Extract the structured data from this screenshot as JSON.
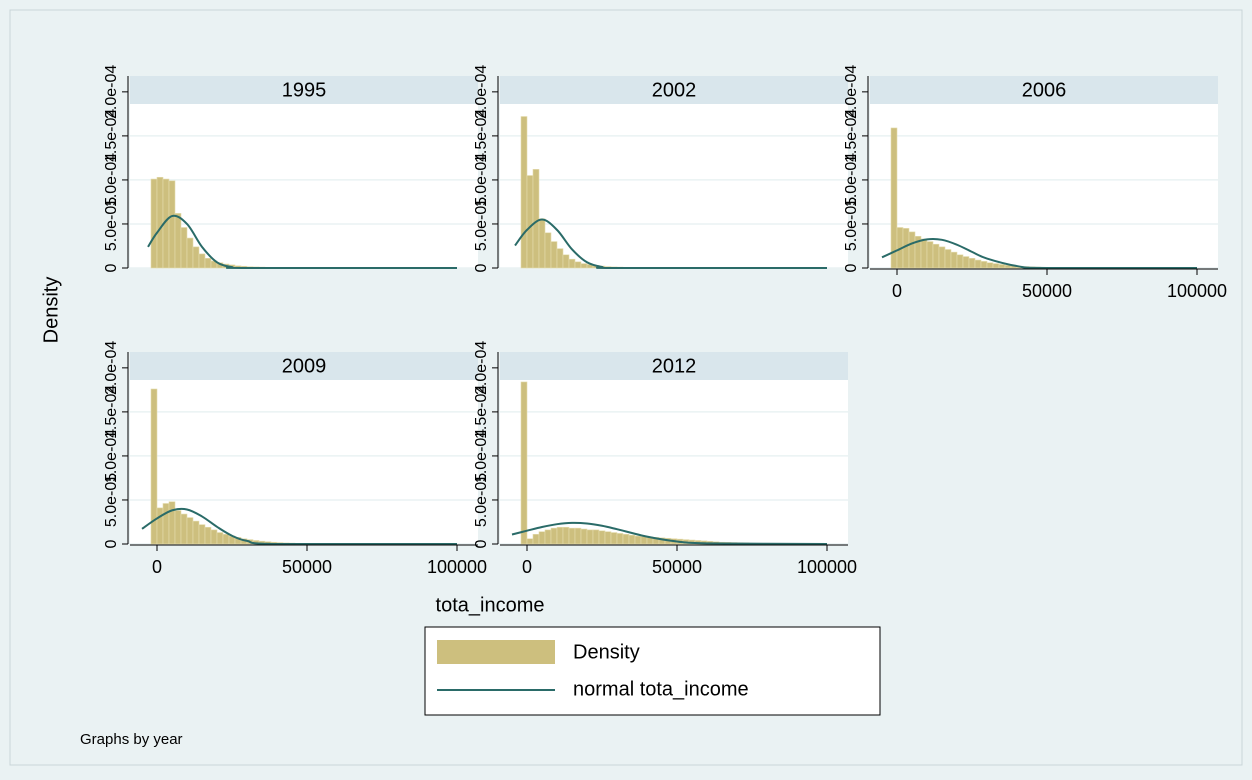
{
  "chart_data": [
    {
      "type": "histogram",
      "title": "1995",
      "x_axis": false,
      "bins": [
        -2000,
        0,
        2000,
        4000,
        6000,
        8000,
        10000,
        12000,
        14000,
        16000,
        18000,
        20000,
        22000,
        24000,
        26000,
        28000,
        30000,
        32000,
        34000,
        36000,
        38000,
        40000
      ],
      "values": [
        0.000101,
        0.000103,
        0.000101,
        9.9e-05,
        6.2e-05,
        4.6e-05,
        3.4e-05,
        2.4e-05,
        1.6e-05,
        1.1e-05,
        8e-06,
        6e-06,
        4.5e-06,
        3.5e-06,
        2.5e-06,
        2e-06,
        1.5e-06,
        1.2e-06,
        1e-06,
        8e-07,
        6e-07
      ],
      "curve": {
        "x": [
          -3000,
          0,
          5000,
          10000,
          15000,
          20000,
          25000,
          30000,
          100000
        ],
        "y": [
          2.4e-05,
          4e-05,
          5.9e-05,
          5e-05,
          2.4e-05,
          6.5e-06,
          1e-06,
          0,
          0
        ]
      },
      "xlim": [
        -9000,
        107000
      ],
      "xticks": [
        0,
        50000,
        100000
      ],
      "ylim": [
        0,
        0.000218
      ],
      "yticks": [
        0,
        {
          "value": 5e-05,
          "label": "5.0e-05"
        },
        {
          "value": 0.0001,
          "label": "1.0e-04"
        },
        {
          "value": 0.00015,
          "label": "1.5e-04"
        },
        {
          "value": 0.0002,
          "label": "2.0e-04"
        }
      ],
      "grid": true
    },
    {
      "type": "histogram",
      "title": "2002",
      "x_axis": false,
      "bins": [
        -2000,
        0,
        2000,
        4000,
        6000,
        8000,
        10000,
        12000,
        14000,
        16000,
        18000,
        20000,
        22000,
        24000,
        26000,
        28000,
        30000,
        32000,
        34000,
        36000
      ],
      "values": [
        0.000172,
        0.000105,
        0.000112,
        5.6e-05,
        4e-05,
        3e-05,
        2.2e-05,
        1.5e-05,
        1e-05,
        7e-06,
        5e-06,
        4e-06,
        3e-06,
        2.2e-06,
        1.6e-06,
        1.2e-06,
        1e-06,
        8e-07,
        6e-07
      ],
      "curve": {
        "x": [
          -4000,
          0,
          5000,
          10000,
          15000,
          20000,
          25000,
          30000,
          100000
        ],
        "y": [
          2.55e-05,
          4.33e-05,
          5.5e-05,
          4.33e-05,
          2.12e-05,
          6.5e-06,
          1.2e-06,
          0,
          0
        ]
      },
      "xlim": [
        -9000,
        107000
      ],
      "xticks": [
        0,
        50000,
        100000
      ],
      "ylim": [
        0,
        0.000218
      ],
      "yticks": [
        0,
        {
          "value": 5e-05,
          "label": "5.0e-05"
        },
        {
          "value": 0.0001,
          "label": "1.0e-04"
        },
        {
          "value": 0.00015,
          "label": "1.5e-04"
        },
        {
          "value": 0.0002,
          "label": "2.0e-04"
        }
      ],
      "grid": true
    },
    {
      "type": "histogram",
      "title": "2006",
      "x_axis": true,
      "bins": [
        -2000,
        0,
        2000,
        4000,
        6000,
        8000,
        10000,
        12000,
        14000,
        16000,
        18000,
        20000,
        22000,
        24000,
        26000,
        28000,
        30000,
        32000,
        34000,
        36000,
        38000,
        40000,
        42000,
        44000,
        46000,
        48000,
        50000
      ],
      "values": [
        0.000159,
        4.6e-05,
        4.5e-05,
        4.1e-05,
        3.6e-05,
        3.3e-05,
        3e-05,
        2.7e-05,
        2.4e-05,
        2.1e-05,
        1.8e-05,
        1.5e-05,
        1.3e-05,
        1.1e-05,
        9e-06,
        7.5e-06,
        6e-06,
        5e-06,
        4e-06,
        3.2e-06,
        2.6e-06,
        2e-06,
        1.6e-06,
        1.2e-06,
        1e-06,
        8e-07
      ],
      "curve": {
        "x": [
          -5000,
          0,
          5000,
          10000,
          15000,
          20000,
          25000,
          30000,
          40000,
          50000,
          100000
        ],
        "y": [
          1.21e-05,
          2e-05,
          2.79e-05,
          3.25e-05,
          3.2e-05,
          2.64e-05,
          1.83e-05,
          1.07e-05,
          2.2e-06,
          0,
          0
        ]
      },
      "xlim": [
        -9000,
        107000
      ],
      "xticks": [
        0,
        50000,
        100000
      ],
      "ylim": [
        0,
        0.000218
      ],
      "yticks": [
        0,
        {
          "value": 5e-05,
          "label": "5.0e-05"
        },
        {
          "value": 0.0001,
          "label": "1.0e-04"
        },
        {
          "value": 0.00015,
          "label": "1.5e-04"
        },
        {
          "value": 0.0002,
          "label": "2.0e-04"
        }
      ],
      "grid": true
    },
    {
      "type": "histogram",
      "title": "2009",
      "x_axis": true,
      "bins": [
        -2000,
        0,
        2000,
        4000,
        6000,
        8000,
        10000,
        12000,
        14000,
        16000,
        18000,
        20000,
        22000,
        24000,
        26000,
        28000,
        30000,
        32000,
        34000,
        36000,
        38000,
        40000,
        42000,
        44000,
        46000,
        48000,
        50000
      ],
      "values": [
        0.000176,
        4.1e-05,
        4.6e-05,
        4.8e-05,
        3.8e-05,
        3.4e-05,
        3e-05,
        2.6e-05,
        2.2e-05,
        1.9e-05,
        1.6e-05,
        1.3e-05,
        1.1e-05,
        9e-06,
        7.5e-06,
        6e-06,
        5e-06,
        4e-06,
        3.2e-06,
        2.6e-06,
        2e-06,
        1.6e-06,
        1.2e-06,
        1e-06,
        8e-07,
        6e-07
      ],
      "curve": {
        "x": [
          -5000,
          0,
          5000,
          10000,
          15000,
          20000,
          25000,
          30000,
          40000,
          100000
        ],
        "y": [
          1.72e-05,
          2.9e-05,
          3.82e-05,
          3.92e-05,
          3.13e-05,
          1.95e-05,
          9.4e-06,
          3.5e-06,
          0,
          0
        ]
      },
      "xlim": [
        -9000,
        107000
      ],
      "xticks": [
        0,
        50000,
        100000
      ],
      "ylim": [
        0,
        0.000218
      ],
      "yticks": [
        0,
        {
          "value": 5e-05,
          "label": "5.0e-05"
        },
        {
          "value": 0.0001,
          "label": "1.0e-04"
        },
        {
          "value": 0.00015,
          "label": "1.5e-04"
        },
        {
          "value": 0.0002,
          "label": "2.0e-04"
        }
      ],
      "grid": true
    },
    {
      "type": "histogram",
      "title": "2012",
      "x_axis": true,
      "bins": [
        -2000,
        0,
        2000,
        4000,
        6000,
        8000,
        10000,
        12000,
        14000,
        16000,
        18000,
        20000,
        22000,
        24000,
        26000,
        28000,
        30000,
        32000,
        34000,
        36000,
        38000,
        40000,
        42000,
        44000,
        46000,
        48000,
        50000,
        52000,
        54000,
        56000,
        58000,
        60000,
        62000,
        64000,
        66000,
        68000,
        70000,
        72000,
        74000
      ],
      "values": [
        0.000184,
        6e-06,
        1.1e-05,
        1.4e-05,
        1.6e-05,
        1.8e-05,
        1.9e-05,
        1.9e-05,
        1.8e-05,
        1.8e-05,
        1.7e-05,
        1.6e-05,
        1.6e-05,
        1.5e-05,
        1.4e-05,
        1.3e-05,
        1.2e-05,
        1.1e-05,
        1e-05,
        9e-06,
        8.5e-06,
        8e-06,
        7.5e-06,
        7e-06,
        6.5e-06,
        6e-06,
        5.5e-06,
        5e-06,
        4.5e-06,
        4e-06,
        3.5e-06,
        3e-06,
        2.5e-06,
        2e-06,
        1.8e-06,
        1.6e-06,
        1.4e-06,
        1.2e-06
      ],
      "curve": {
        "x": [
          -5000,
          0,
          5000,
          10000,
          15000,
          20000,
          25000,
          30000,
          40000,
          50000,
          60000,
          100000
        ],
        "y": [
          1.08e-05,
          1.51e-05,
          1.93e-05,
          2.25e-05,
          2.4e-05,
          2.33e-05,
          2.07e-05,
          1.68e-05,
          8.4e-06,
          2.9e-06,
          7e-07,
          0
        ]
      },
      "xlim": [
        -9000,
        107000
      ],
      "xticks": [
        0,
        50000,
        100000
      ],
      "ylim": [
        0,
        0.000218
      ],
      "yticks": [
        0,
        {
          "value": 5e-05,
          "label": "5.0e-05"
        },
        {
          "value": 0.0001,
          "label": "1.0e-04"
        },
        {
          "value": 0.00015,
          "label": "1.5e-04"
        },
        {
          "value": 0.0002,
          "label": "2.0e-04"
        }
      ],
      "grid": true
    }
  ],
  "y_label": "Density",
  "x_label": "tota_income",
  "legend": {
    "position": "bottom",
    "entries": [
      {
        "name": "Density",
        "color": "#cdbf7e"
      },
      {
        "name": "normal tota_income",
        "color": "#2a6b68"
      }
    ]
  },
  "note": "Graphs by year"
}
